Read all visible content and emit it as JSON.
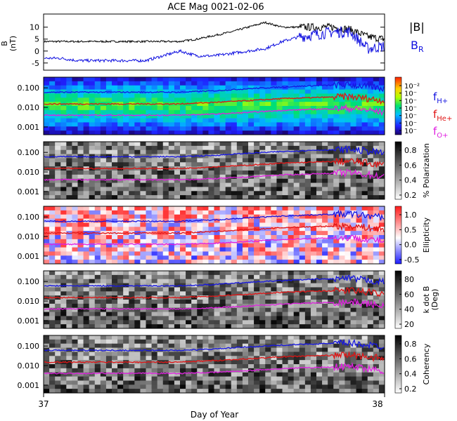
{
  "title": "ACE Mag 0021-02-06",
  "x_axis": {
    "label": "Day of Year",
    "start_label": "37",
    "end_label": "38",
    "range": [
      37,
      38
    ]
  },
  "colors": {
    "B_total": "#000000",
    "B_R": "#1010e0",
    "f_H": "#1515e0",
    "f_He": "#e01515",
    "f_O": "#e020e0"
  },
  "panels": {
    "mag": {
      "ylabel": "B",
      "yunit": "(nT)",
      "yticks": [
        "10",
        "5",
        "0",
        "-5"
      ],
      "ytick_values": [
        10,
        5,
        0,
        -5
      ],
      "ylim": [
        -8,
        15.5
      ]
    },
    "power": {
      "yticks": [
        "0.100",
        "0.010",
        "0.001"
      ],
      "cbar_labels": [
        "10⁻²",
        "10⁻",
        "10⁻",
        "10⁻",
        "10⁻",
        "10⁻",
        "10⁻"
      ]
    },
    "polar": {
      "yticks": [
        "0.100",
        "0.010",
        "0.001"
      ],
      "cbar_title": "% Polarization",
      "cbar_labels": [
        "0.8",
        "0.6",
        "0.4",
        "0.2"
      ]
    },
    "ellip": {
      "yticks": [
        "0.100",
        "0.010",
        "0.001"
      ],
      "cbar_title": "Ellipticity",
      "cbar_labels": [
        "1.0",
        "0.5",
        "0.0",
        "-0.5"
      ]
    },
    "kdotb": {
      "yticks": [
        "0.100",
        "0.010",
        "0.001"
      ],
      "cbar_title": "k dot B",
      "cbar_subtitle": "(Deg)",
      "cbar_labels": [
        "80",
        "60",
        "40",
        "20"
      ]
    },
    "coher": {
      "yticks": [
        "0.100",
        "0.010",
        "0.001"
      ],
      "cbar_title": "Coherency",
      "cbar_labels": [
        "0.8",
        "0.6",
        "0.4",
        "0.2"
      ]
    }
  },
  "legend": {
    "mag": {
      "btot": "|B|",
      "br_main": "B",
      "br_sub": "R"
    },
    "gyro": {
      "h_main": "f",
      "h_sub": "H+",
      "he_main": "f",
      "he_sub": "He+",
      "o_main": "f",
      "o_sub": "O+"
    }
  },
  "chart_data": {
    "type": "line",
    "x_units": "day of year",
    "series_mag": [
      {
        "name": "|B|",
        "x": [
          37.0,
          37.1,
          37.2,
          37.3,
          37.4,
          37.45,
          37.5,
          37.55,
          37.6,
          37.65,
          37.7,
          37.75,
          37.8,
          37.85,
          37.9,
          37.95,
          38.0
        ],
        "y": [
          4,
          4,
          4,
          4,
          4,
          5,
          6.5,
          8,
          10,
          12,
          10,
          10,
          10,
          10,
          9,
          6,
          5
        ]
      },
      {
        "name": "B_R",
        "x": [
          37.0,
          37.05,
          37.1,
          37.2,
          37.3,
          37.35,
          37.4,
          37.45,
          37.5,
          37.55,
          37.6,
          37.65,
          37.7,
          37.75,
          37.8,
          37.85,
          37.9,
          37.95,
          38.0
        ],
        "y": [
          -3,
          -3,
          -4,
          -4,
          -4,
          -2,
          0,
          -2,
          -2,
          -1,
          0,
          1,
          4,
          6,
          7,
          8,
          8,
          1,
          2
        ]
      },
      {
        "name": "f_H+",
        "x": [
          37.0,
          37.2,
          37.4,
          37.5,
          37.6,
          37.7,
          37.8,
          37.9,
          38.0
        ],
        "y": [
          0.06,
          0.06,
          0.06,
          0.07,
          0.09,
          0.11,
          0.13,
          0.14,
          0.09
        ]
      },
      {
        "name": "f_He+",
        "x": [
          37.0,
          37.2,
          37.4,
          37.5,
          37.6,
          37.7,
          37.8,
          37.9,
          38.0
        ],
        "y": [
          0.015,
          0.015,
          0.015,
          0.018,
          0.022,
          0.028,
          0.032,
          0.035,
          0.022
        ]
      },
      {
        "name": "f_O+",
        "x": [
          37.0,
          37.2,
          37.4,
          37.5,
          37.6,
          37.7,
          37.8,
          37.9,
          38.0
        ],
        "y": [
          0.004,
          0.004,
          0.004,
          0.0045,
          0.0055,
          0.007,
          0.008,
          0.009,
          0.0055
        ]
      }
    ]
  }
}
